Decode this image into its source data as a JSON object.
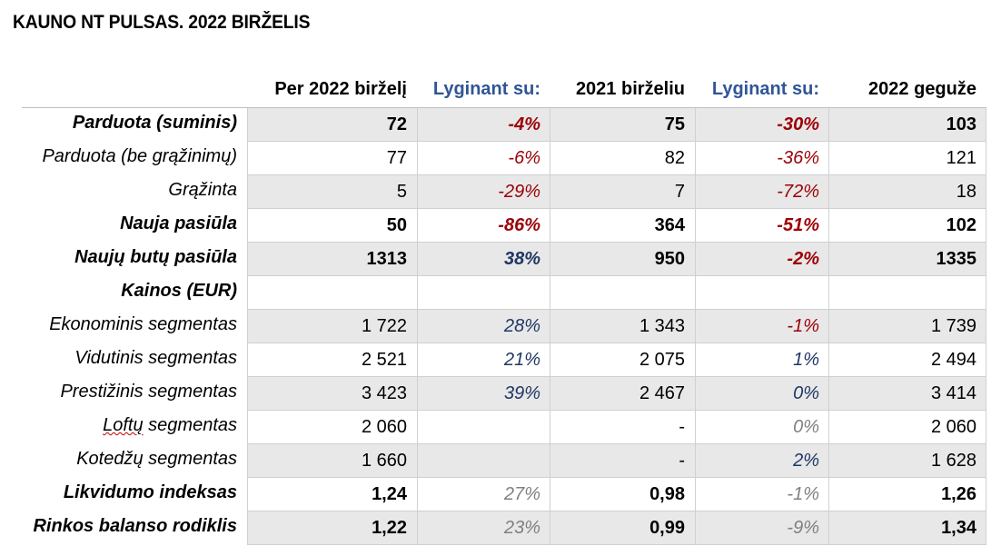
{
  "title": "KAUNO NT PULSAS. 2022 BIRŽELIS",
  "colors": {
    "negative": "#9c0006",
    "positive": "#1f3864",
    "neutral": "#808080",
    "header_blue": "#2f5597",
    "shade": "#e8e8e8"
  },
  "headers": {
    "col1": "Per 2022 birželį",
    "col2": "Lyginant su:",
    "col3": "2021 birželiu",
    "col4": "Lyginant su:",
    "col5": "2022 geguže"
  },
  "rows": [
    {
      "label": "Parduota (suminis)",
      "v1": "72",
      "v2": "-4%",
      "v3": "75",
      "v4": "-30%",
      "v5": "103"
    },
    {
      "label": "Parduota (be grąžinimų)",
      "v1": "77",
      "v2": "-6%",
      "v3": "82",
      "v4": "-36%",
      "v5": "121"
    },
    {
      "label": "Grąžinta",
      "v1": "5",
      "v2": "-29%",
      "v3": "7",
      "v4": "-72%",
      "v5": "18"
    },
    {
      "label": "Nauja pasiūla",
      "v1": "50",
      "v2": "-86%",
      "v3": "364",
      "v4": "-51%",
      "v5": "102"
    },
    {
      "label": "Naujų butų pasiūla",
      "v1": "1313",
      "v2": "38%",
      "v3": "950",
      "v4": "-2%",
      "v5": "1335"
    },
    {
      "label": "Kainos (EUR)",
      "v1": "",
      "v2": "",
      "v3": "",
      "v4": "",
      "v5": ""
    },
    {
      "label": "Ekonominis segmentas",
      "v1": "1 722",
      "v2": "28%",
      "v3": "1 343",
      "v4": "-1%",
      "v5": "1 739"
    },
    {
      "label": "Vidutinis segmentas",
      "v1": "2 521",
      "v2": "21%",
      "v3": "2 075",
      "v4": "1%",
      "v5": "2 494"
    },
    {
      "label": "Prestižinis segmentas",
      "v1": "3 423",
      "v2": "39%",
      "v3": "2 467",
      "v4": "0%",
      "v5": "3 414"
    },
    {
      "label_word": "Loftų",
      "label_rest": " segmentas",
      "v1": "2 060",
      "v2": "",
      "v3": "-",
      "v4": "0%",
      "v5": "2 060"
    },
    {
      "label": "Kotedžų segmentas",
      "v1": "1 660",
      "v2": "",
      "v3": "-",
      "v4": "2%",
      "v5": "1 628"
    },
    {
      "label": "Likvidumo indeksas",
      "v1": "1,24",
      "v2": "27%",
      "v3": "0,98",
      "v4": "-1%",
      "v5": "1,26"
    },
    {
      "label": "Rinkos balanso rodiklis",
      "v1": "1,22",
      "v2": "23%",
      "v3": "0,99",
      "v4": "-9%",
      "v5": "1,34"
    }
  ]
}
